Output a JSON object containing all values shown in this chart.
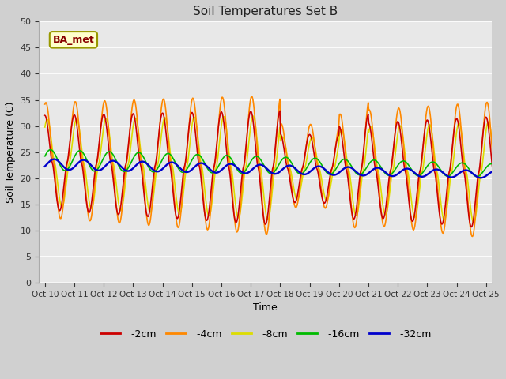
{
  "title": "Soil Temperatures Set B",
  "xlabel": "Time",
  "ylabel": "Soil Temperature (C)",
  "ylim": [
    0,
    50
  ],
  "yticks": [
    0,
    5,
    10,
    15,
    20,
    25,
    30,
    35,
    40,
    45,
    50
  ],
  "colors": {
    "-2cm": "#cc0000",
    "-4cm": "#ff8800",
    "-8cm": "#dddd00",
    "-16cm": "#00bb00",
    "-32cm": "#0000cc"
  },
  "legend_label": "BA_met",
  "fig_bg": "#d0d0d0",
  "plot_bg": "#e8e8e8",
  "x_tick_labels": [
    "Oct 10",
    "Oct 11",
    "Oct 12",
    "Oct 13",
    "Oct 14",
    "Oct 15",
    "Oct 16",
    "Oct 17",
    "Oct 18",
    "Oct 19",
    "Oct 20",
    "Oct 21",
    "Oct 22",
    "Oct 23",
    "Oct 24",
    "Oct 25"
  ],
  "linewidth": 1.2
}
